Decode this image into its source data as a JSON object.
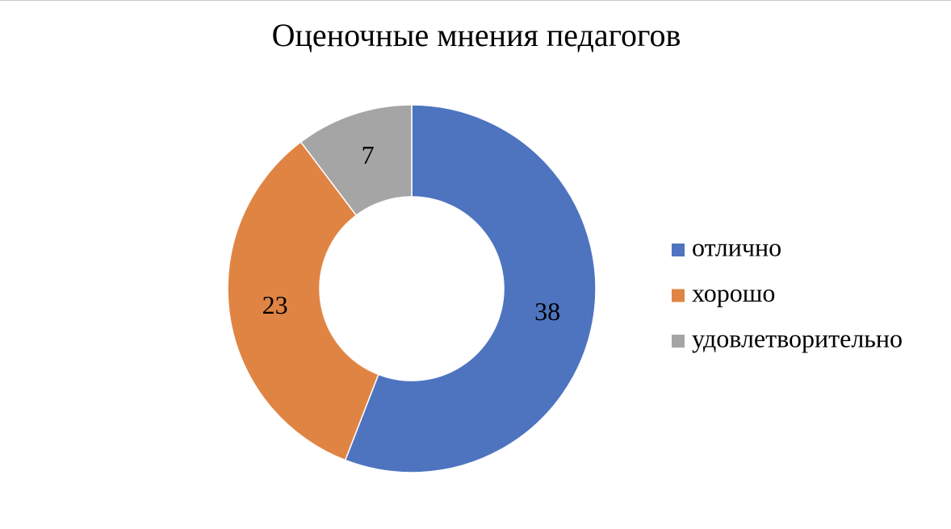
{
  "chart_data": {
    "type": "pie",
    "title": "Оценочные мнения педагогов",
    "categories": [
      "отлично",
      "хорошо",
      "удовлетворительно"
    ],
    "values": [
      38,
      23,
      7
    ],
    "colors": [
      "#4e74c0",
      "#e08444",
      "#a5a5a5"
    ],
    "legend": "right"
  }
}
